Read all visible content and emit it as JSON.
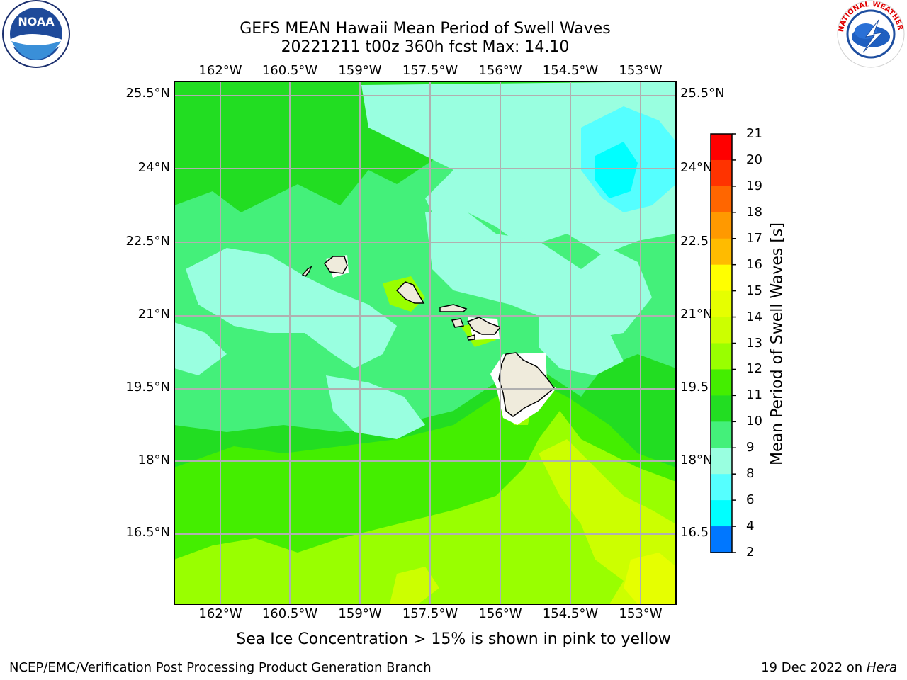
{
  "header": {
    "title_line1": "GEFS MEAN Hawaii Mean Period of Swell Waves",
    "title_line2": "20221211 t00z 360h fcst   Max: 14.10"
  },
  "logos": {
    "left": {
      "text": "NOAA",
      "ring_text": "NATIONAL OCEANIC AND ATMOSPHERIC ADMINISTRATION · U.S. DEPARTMENT OF COMMERCE"
    },
    "right": {
      "ring_text": "NATIONAL WEATHER SERVICE"
    }
  },
  "map": {
    "lon_labels": [
      "162°W",
      "160.5°W",
      "159°W",
      "157.5°W",
      "156°W",
      "154.5°W",
      "153°W"
    ],
    "lat_labels_left": [
      "25.5°N",
      "24°N",
      "22.5°N",
      "21°N",
      "19.5°N",
      "18°N",
      "16.5°N"
    ],
    "lat_labels_right": [
      "25.5°N",
      "24°N",
      "22.5",
      "21°N",
      "19.5",
      "18°N",
      "16.5"
    ],
    "islands": [
      "Niihau",
      "Kauai",
      "Oahu",
      "Molokai",
      "Lanai",
      "Maui",
      "Kahoolawe",
      "Hawaii"
    ],
    "colors": {
      "land": "#efebdc",
      "grid": "#b0b0b0",
      "frame": "#000000"
    }
  },
  "colorbar": {
    "label": "Mean Period of Swell Waves [s]",
    "ticks": [
      "21",
      "20",
      "19",
      "18",
      "17",
      "16",
      "15",
      "14",
      "13",
      "12",
      "11",
      "10",
      "9",
      "8",
      "6",
      "4",
      "2"
    ],
    "colors_top_to_bottom": [
      "#ff0000",
      "#ff3300",
      "#ff6600",
      "#ff9900",
      "#ffbb00",
      "#ffff00",
      "#e6ff00",
      "#ccff00",
      "#99ff00",
      "#44ee00",
      "#22dd22",
      "#44f07a",
      "#99ffe0",
      "#55ffff",
      "#00ffff",
      "#0077ff",
      "#0000ff"
    ]
  },
  "note": "Sea Ice Concentration > 15% is shown in pink to yellow",
  "footer": {
    "left": "NCEP/EMC/Verification Post Processing Product Generation Branch",
    "right_prefix": "19 Dec 2022 on",
    "right_italic": "Hera"
  }
}
